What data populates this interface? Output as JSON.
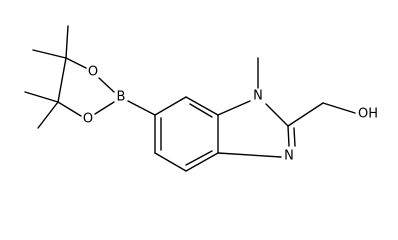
{
  "atoms": [
    {
      "label": "N"
    },
    {
      "label": "N"
    },
    {
      "label": "OH"
    },
    {
      "label": "B"
    },
    {
      "label": "O"
    },
    {
      "label": "O"
    }
  ]
}
